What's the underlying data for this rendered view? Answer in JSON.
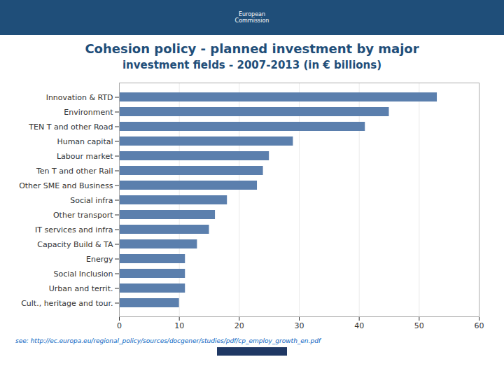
{
  "chart_data": {
    "type": "bar",
    "orientation": "horizontal",
    "title": "Cohesion policy - planned investment by major",
    "subtitle": "investment fields - 2007-2013 (in € billions)",
    "annotations": [
      "European\nCommission",
      "see: http://ec.europa.eu/regional_policy/sources/docgener/studies/pdf/cp_employ_growth_en.pdf"
    ],
    "categories": [
      "Cult., heritage and tour.",
      "Urban and territ.",
      "Social Inclusion",
      "Energy",
      "Capacity Build & TA",
      "IT services and infra",
      "Other transport",
      "Social infra",
      "Other SME and Business",
      "Ten T and other Rail",
      "Labour market",
      "Human capital",
      "TEN T and other Road",
      "Environment",
      "Innovation & RTD"
    ],
    "values": [
      10,
      11,
      11,
      11,
      13,
      15,
      16,
      18,
      23,
      24,
      25,
      29,
      41,
      45,
      53
    ],
    "color": "#5b7fad",
    "xlim": [
      0,
      60
    ],
    "xticks": [
      0,
      10,
      20,
      30,
      40,
      50,
      60
    ],
    "grid": true
  }
}
